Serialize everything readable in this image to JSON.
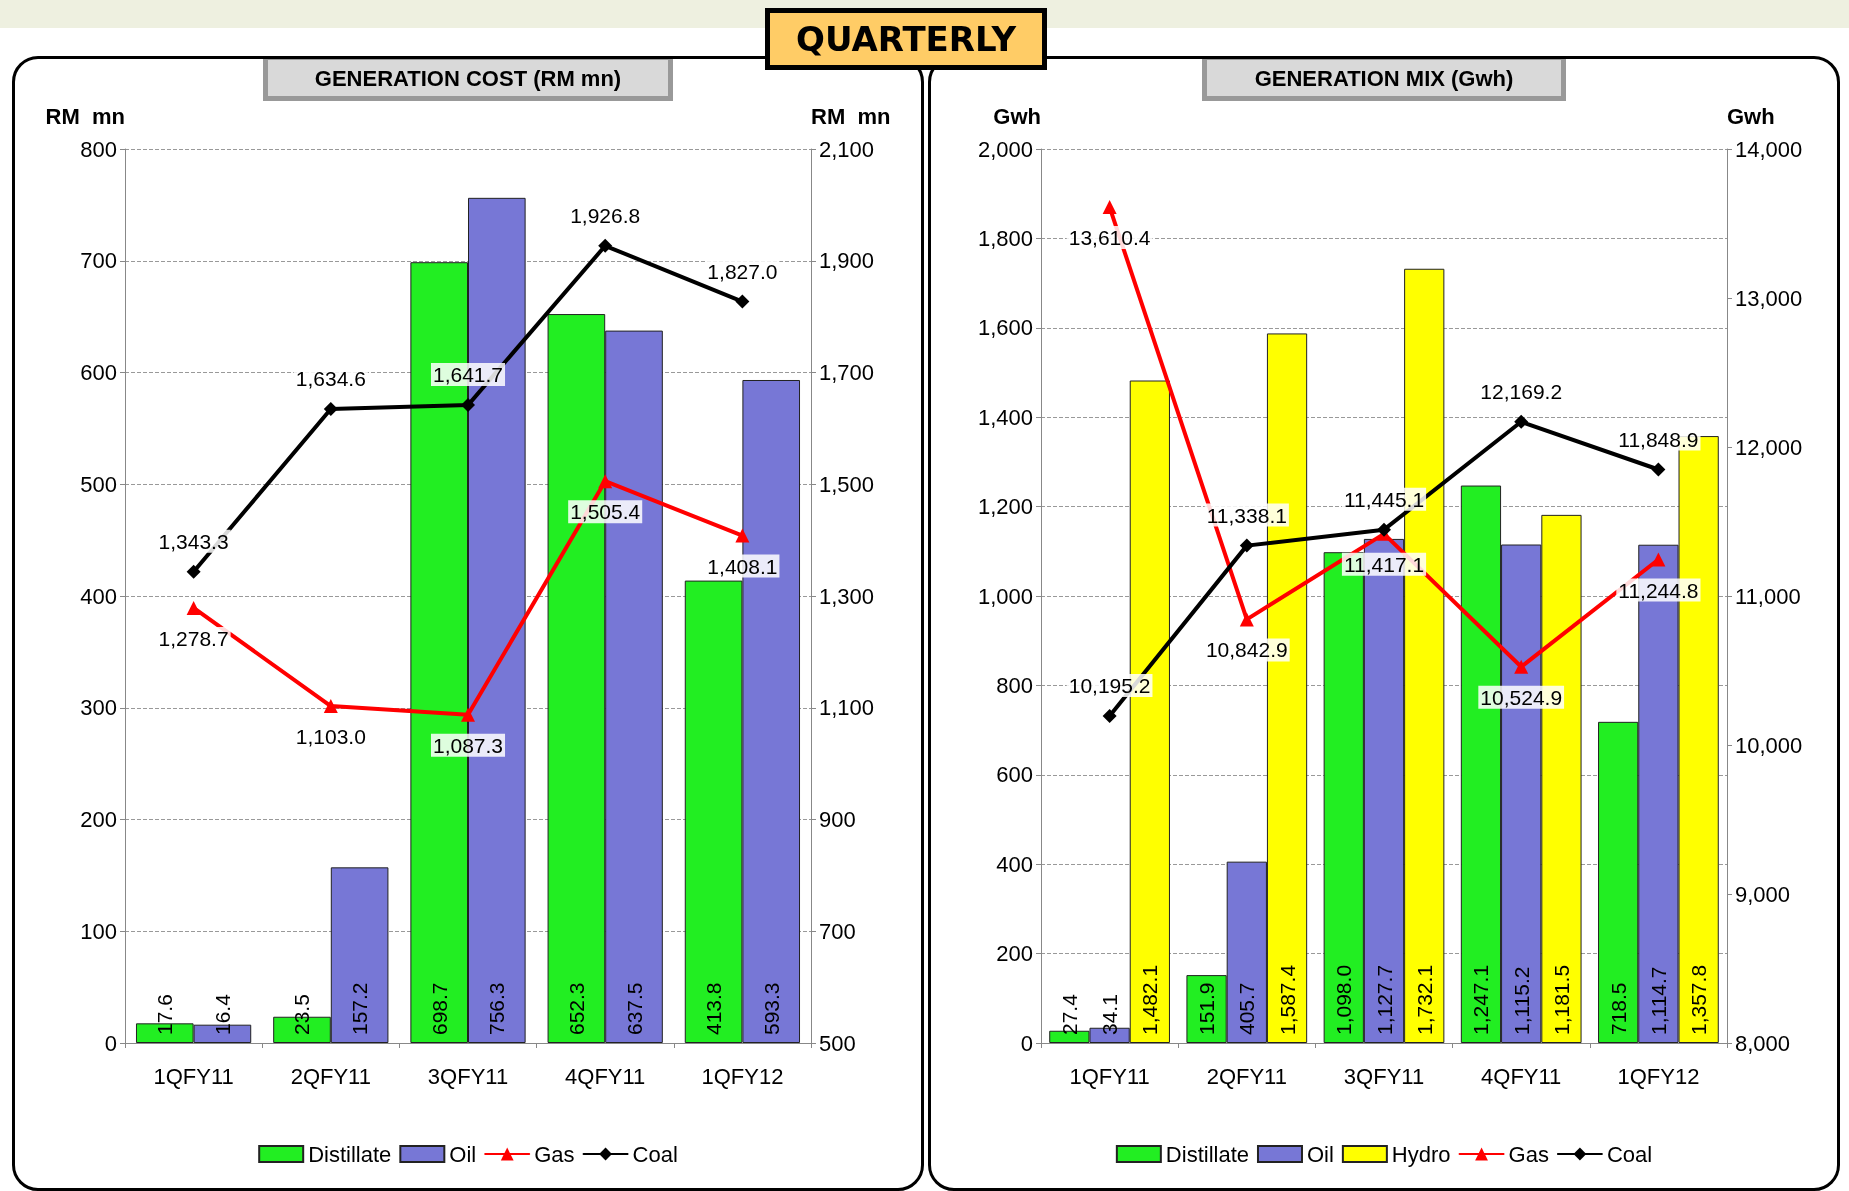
{
  "chart_data": [
    {
      "type": "bar",
      "title": "GENERATION COST (RM mn)",
      "annotations": [
        "QUARTERLY"
      ],
      "ylabel": "RM  mn",
      "y2label": "RM  mn",
      "categories": [
        "1QFY11",
        "2QFY11",
        "3QFY11",
        "4QFY11",
        "1QFY12"
      ],
      "series": [
        {
          "name": "Distillate",
          "color": "#22ee22",
          "values": [
            17.6,
            23.5,
            698.7,
            652.3,
            413.8
          ],
          "value_labels": [
            "17.6",
            "23.5",
            "698.7",
            "652.3",
            "413.8"
          ]
        },
        {
          "name": "Oil",
          "color": "#7777d6",
          "values": [
            16.4,
            157.2,
            756.3,
            637.5,
            593.3
          ],
          "value_labels": [
            "16.4",
            "157.2",
            "756.3",
            "637.5",
            "593.3"
          ]
        },
        {
          "name": "Gas",
          "type": "line",
          "axis": "y2",
          "marker": "triangle",
          "color": "#ff0000",
          "values": [
            1278.7,
            1103.0,
            1087.3,
            1505.4,
            1408.1
          ],
          "value_labels": [
            "1,278.7",
            "1,103.0",
            "1,087.3",
            "1,505.4",
            "1,408.1"
          ]
        },
        {
          "name": "Coal",
          "type": "line",
          "axis": "y2",
          "marker": "diamond",
          "color": "#000000",
          "values": [
            1343.3,
            1634.6,
            1641.7,
            1926.8,
            1827.0
          ],
          "value_labels": [
            "1,343.3",
            "1,634.6",
            "1,641.7",
            "1,926.8",
            "1,827.0"
          ]
        }
      ],
      "ylim": [
        0,
        800
      ],
      "yticks": [
        0,
        100,
        200,
        300,
        400,
        500,
        600,
        700,
        800
      ],
      "y2lim": [
        500,
        2100
      ],
      "y2ticks": [
        500,
        700,
        900,
        {
          "value": 1100,
          "label": "1,100"
        },
        {
          "value": 1300,
          "label": "1,300"
        },
        {
          "value": 1500,
          "label": "1,500"
        },
        {
          "value": 1700,
          "label": "1,700"
        },
        {
          "value": 1900,
          "label": "1,900"
        },
        {
          "value": 2100,
          "label": "2,100"
        }
      ],
      "grid": "y",
      "legend": "bottom",
      "line_style": "solid"
    },
    {
      "type": "bar",
      "title": "GENERATION MIX (Gwh)",
      "ylabel": "Gwh",
      "y2label": "Gwh",
      "categories": [
        "1QFY11",
        "2QFY11",
        "3QFY11",
        "4QFY11",
        "1QFY12"
      ],
      "series": [
        {
          "name": "Distillate",
          "color": "#22ee22",
          "values": [
            27.4,
            151.9,
            1098.0,
            1247.1,
            718.5
          ],
          "value_labels": [
            "27.4",
            "151.9",
            "1,098.0",
            "1,247.1",
            "718.5"
          ]
        },
        {
          "name": "Oil",
          "color": "#7777d6",
          "values": [
            34.1,
            405.7,
            1127.7,
            1115.2,
            1114.7
          ],
          "value_labels": [
            "34.1",
            "405.7",
            "1,127.7",
            "1,115.2",
            "1,114.7"
          ]
        },
        {
          "name": "Hydro",
          "color": "#ffff00",
          "values": [
            1482.1,
            1587.4,
            1732.1,
            1181.5,
            1357.8
          ],
          "value_labels": [
            "1,482.1",
            "1,587.4",
            "1,732.1",
            "1,181.5",
            "1,357.8"
          ]
        },
        {
          "name": "Gas",
          "type": "line",
          "axis": "y2",
          "marker": "triangle",
          "color": "#ff0000",
          "values": [
            13610.4,
            10842.9,
            11417.1,
            10524.9,
            11244.8
          ],
          "value_labels": [
            "13,610.4",
            "10,842.9",
            "11,417.1",
            "10,524.9",
            "11,244.8"
          ]
        },
        {
          "name": "Coal",
          "type": "line",
          "axis": "y2",
          "marker": "diamond",
          "color": "#000000",
          "values": [
            10195.2,
            11338.1,
            11445.1,
            12169.2,
            11848.9
          ],
          "value_labels": [
            "10,195.2",
            "11,338.1",
            "11,445.1",
            "12,169.2",
            "11,848.9"
          ]
        }
      ],
      "ylim": [
        0,
        2000
      ],
      "yticks": [
        0,
        200,
        400,
        600,
        800,
        {
          "value": 1000,
          "label": "1,000"
        },
        {
          "value": 1200,
          "label": "1,200"
        },
        {
          "value": 1400,
          "label": "1,400"
        },
        {
          "value": 1600,
          "label": "1,600"
        },
        {
          "value": 1800,
          "label": "1,800"
        },
        {
          "value": 2000,
          "label": "2,000"
        }
      ],
      "y2lim": [
        8000,
        14000
      ],
      "y2ticks": [
        {
          "value": 8000,
          "label": "8,000"
        },
        {
          "value": 9000,
          "label": "9,000"
        },
        {
          "value": 10000,
          "label": "10,000"
        },
        {
          "value": 11000,
          "label": "11,000"
        },
        {
          "value": 12000,
          "label": "12,000"
        },
        {
          "value": 13000,
          "label": "13,000"
        },
        {
          "value": 14000,
          "label": "14,000"
        }
      ],
      "grid": "y",
      "legend": "bottom",
      "line_style": "solid"
    }
  ]
}
